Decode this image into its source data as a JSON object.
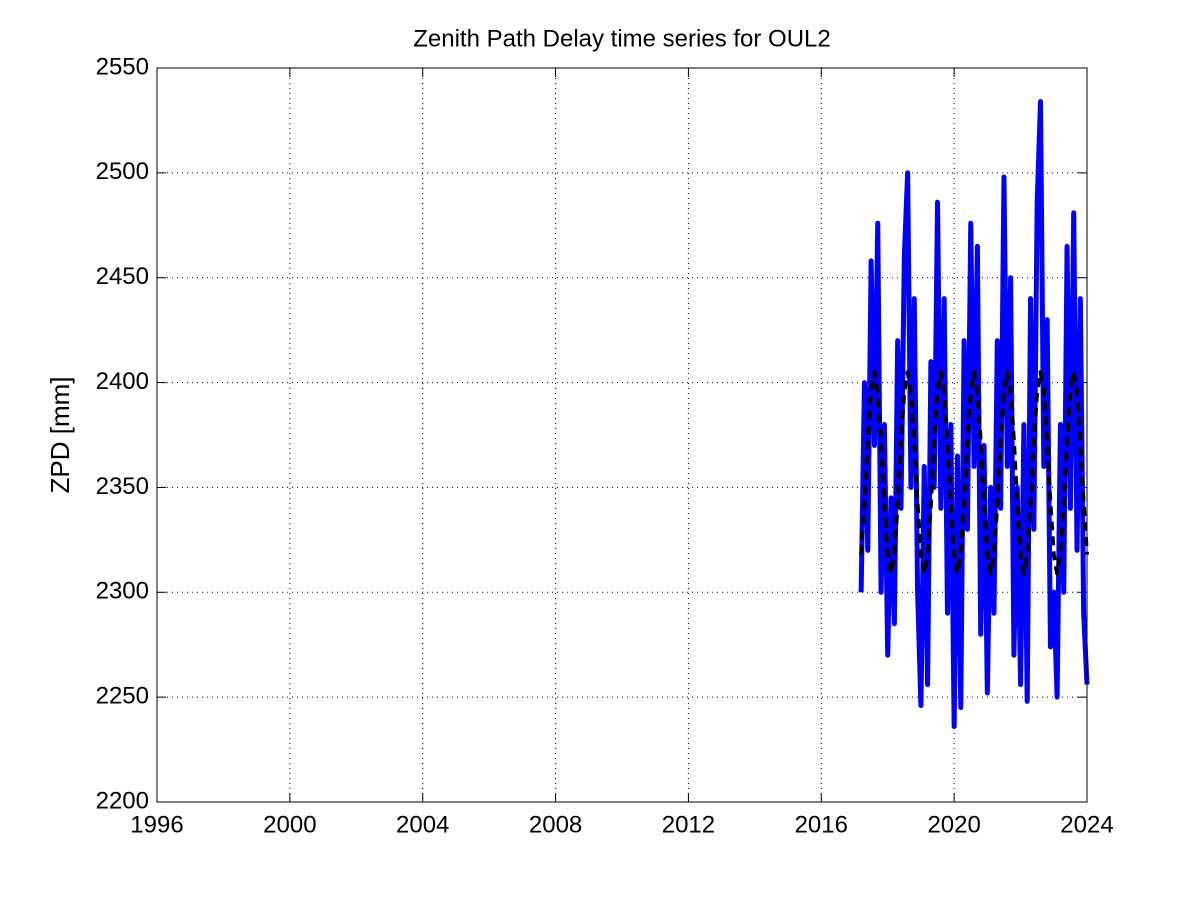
{
  "chart_data": {
    "type": "line",
    "title": "Zenith Path Delay time series for OUL2",
    "y_label": "ZPD [mm]",
    "x": [
      2017.2,
      2017.3,
      2017.4,
      2017.5,
      2017.6,
      2017.7,
      2017.8,
      2017.9,
      2018.0,
      2018.1,
      2018.2,
      2018.3,
      2018.4,
      2018.5,
      2018.6,
      2018.7,
      2018.8,
      2018.9,
      2019.0,
      2019.1,
      2019.2,
      2019.3,
      2019.4,
      2019.5,
      2019.6,
      2019.7,
      2019.8,
      2019.9,
      2020.0,
      2020.1,
      2020.2,
      2020.3,
      2020.4,
      2020.5,
      2020.6,
      2020.7,
      2020.8,
      2020.9,
      2021.0,
      2021.1,
      2021.2,
      2021.3,
      2021.4,
      2021.5,
      2021.6,
      2021.7,
      2021.8,
      2021.9,
      2022.0,
      2022.1,
      2022.2,
      2022.3,
      2022.4,
      2022.5,
      2022.6,
      2022.7,
      2022.8,
      2022.9,
      2023.0,
      2023.1,
      2023.2,
      2023.3,
      2023.4,
      2023.5,
      2023.6,
      2023.7,
      2023.8,
      2023.9,
      2024.0
    ],
    "series": [
      {
        "color": "#0000ff",
        "values": [
          2300,
          2400,
          2320,
          2458,
          2370,
          2476,
          2300,
          2380,
          2270,
          2345,
          2285,
          2420,
          2340,
          2460,
          2500,
          2350,
          2440,
          2300,
          2246,
          2360,
          2256,
          2410,
          2350,
          2486,
          2340,
          2440,
          2290,
          2380,
          2236,
          2365,
          2245,
          2420,
          2330,
          2476,
          2360,
          2465,
          2280,
          2370,
          2252,
          2350,
          2290,
          2420,
          2340,
          2498,
          2360,
          2450,
          2270,
          2350,
          2256,
          2380,
          2248,
          2440,
          2330,
          2486,
          2534,
          2360,
          2430,
          2274,
          2300,
          2250,
          2380,
          2300,
          2465,
          2340,
          2481,
          2320,
          2440,
          2290,
          2256
        ]
      },
      {
        "color": "#000000",
        "dashed": true,
        "values": [
          2318,
          2342,
          2372,
          2396,
          2405,
          2396,
          2372,
          2342,
          2318,
          2309,
          2318,
          2342,
          2372,
          2396,
          2405,
          2396,
          2372,
          2342,
          2318,
          2309,
          2318,
          2342,
          2372,
          2396,
          2405,
          2396,
          2372,
          2342,
          2318,
          2309,
          2318,
          2342,
          2372,
          2396,
          2405,
          2396,
          2372,
          2342,
          2318,
          2309,
          2318,
          2342,
          2372,
          2396,
          2405,
          2396,
          2372,
          2342,
          2318,
          2309,
          2318,
          2342,
          2372,
          2396,
          2405,
          2396,
          2372,
          2342,
          2318,
          2309,
          2318,
          2342,
          2372,
          2396,
          2405,
          2396,
          2372,
          2342,
          2318
        ]
      }
    ],
    "xlim": [
      1996,
      2024
    ],
    "xticks": [
      1996,
      2000,
      2004,
      2008,
      2012,
      2016,
      2020,
      2024
    ],
    "ylim": [
      2200,
      2550
    ],
    "yticks": [
      2200,
      2250,
      2300,
      2350,
      2400,
      2450,
      2500,
      2550
    ],
    "grid": true
  }
}
